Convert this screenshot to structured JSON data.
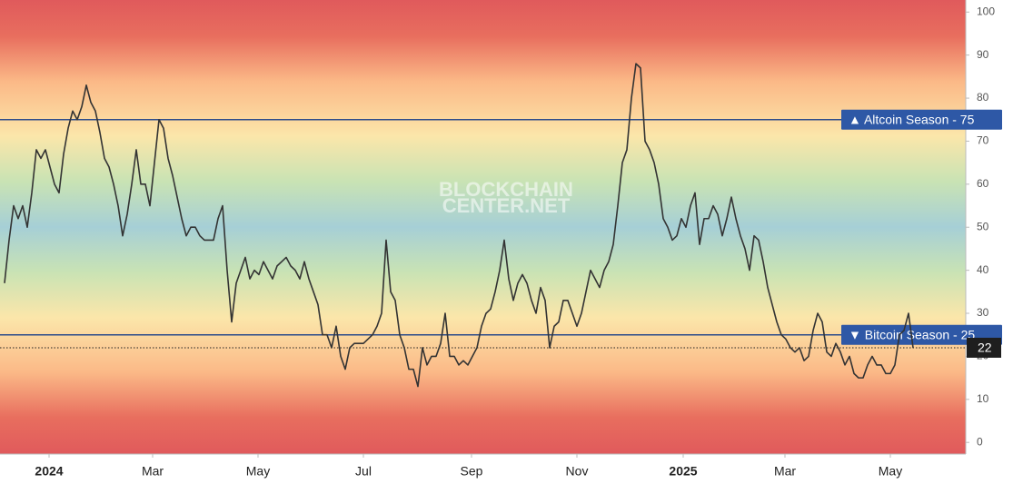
{
  "chart_data": {
    "type": "line",
    "watermark": [
      "BLOCKCHAIN",
      "CENTER.NET"
    ],
    "series": [
      {
        "color": "#333333",
        "values": [
          37,
          47,
          55,
          52,
          55,
          50,
          58,
          68,
          66,
          68,
          64,
          60,
          58,
          67,
          73,
          77,
          75,
          78,
          83,
          79,
          77,
          72,
          66,
          64,
          60,
          55,
          48,
          53,
          60,
          68,
          60,
          60,
          55,
          65,
          75,
          73,
          66,
          62,
          57,
          52,
          48,
          50,
          50,
          48,
          47,
          47,
          47,
          52,
          55,
          40,
          28,
          37,
          40,
          43,
          38,
          40,
          39,
          42,
          40,
          38,
          41,
          42,
          43,
          41,
          40,
          38,
          42,
          38,
          35,
          32,
          25,
          25,
          22,
          27,
          20,
          17,
          22,
          23,
          23,
          23,
          24,
          25,
          27,
          30,
          47,
          35,
          33,
          25,
          22,
          17,
          17,
          13,
          22,
          18,
          20,
          20,
          23,
          30,
          20,
          20,
          18,
          19,
          18,
          20,
          22,
          27,
          30,
          31,
          35,
          40,
          47,
          38,
          33,
          37,
          39,
          37,
          33,
          30,
          36,
          33,
          22,
          27,
          28,
          33,
          33,
          30,
          27,
          30,
          35,
          40,
          38,
          36,
          40,
          42,
          46,
          55,
          65,
          68,
          80,
          88,
          87,
          70,
          68,
          65,
          60,
          52,
          50,
          47,
          48,
          52,
          50,
          55,
          58,
          46,
          52,
          52,
          55,
          53,
          48,
          52,
          57,
          52,
          48,
          45,
          40,
          48,
          47,
          42,
          36,
          32,
          28,
          25,
          24,
          22,
          21,
          22,
          19,
          20,
          26,
          30,
          28,
          21,
          20,
          23,
          21,
          18,
          20,
          16,
          15,
          15,
          18,
          20,
          18,
          18,
          16,
          16,
          18,
          25,
          26,
          30,
          22
        ]
      }
    ],
    "xlim": [
      0,
      211.6
    ],
    "xticks": [
      {
        "value": 9.8,
        "label": "2024"
      },
      {
        "value": 32.6,
        "label": "Mar"
      },
      {
        "value": 55.8,
        "label": "May"
      },
      {
        "value": 79,
        "label": "Jul"
      },
      {
        "value": 102.8,
        "label": "Sep"
      },
      {
        "value": 126,
        "label": "Nov"
      },
      {
        "value": 149.4,
        "label": "2025"
      },
      {
        "value": 171.8,
        "label": "Mar"
      },
      {
        "value": 195,
        "label": "May"
      }
    ],
    "ylim": [
      -2.7,
      102.8
    ],
    "yticks": [
      0,
      10,
      20,
      30,
      40,
      50,
      60,
      70,
      80,
      90,
      100
    ],
    "reference_lines": [
      {
        "value": 75,
        "label": "▲ Altcoin Season - 75",
        "color": "#2b4b8a"
      },
      {
        "value": 25,
        "label": "▼ Bitcoin Season - 25",
        "color": "#2b4b8a"
      }
    ],
    "current_line": 22
  }
}
